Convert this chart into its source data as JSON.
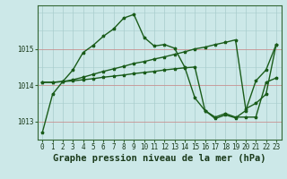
{
  "title": "Graphe pression niveau de la mer (hPa)",
  "bg_color": "#cce8e8",
  "plot_bg_color": "#cce8e8",
  "line_color": "#1a5c1a",
  "grid_color_v": "#a8cccc",
  "grid_color_h_red": "#c89090",
  "xlim": [
    -0.5,
    23.5
  ],
  "ylim": [
    1012.5,
    1016.2
  ],
  "yticks": [
    1013,
    1014,
    1015
  ],
  "xticks": [
    0,
    1,
    2,
    3,
    4,
    5,
    6,
    7,
    8,
    9,
    10,
    11,
    12,
    13,
    14,
    15,
    16,
    17,
    18,
    19,
    20,
    21,
    22,
    23
  ],
  "series1": [
    1012.7,
    1013.75,
    1014.1,
    1014.42,
    1014.9,
    1015.1,
    1015.35,
    1015.55,
    1015.85,
    1015.95,
    1015.32,
    1015.08,
    1015.12,
    1015.02,
    1014.5,
    1013.65,
    1013.3,
    1013.08,
    1013.18,
    1013.1,
    1013.3,
    1014.12,
    1014.42,
    1015.12
  ],
  "series2": [
    1014.08,
    1014.08,
    1014.1,
    1014.15,
    1014.22,
    1014.3,
    1014.38,
    1014.45,
    1014.52,
    1014.6,
    1014.65,
    1014.72,
    1014.78,
    1014.85,
    1014.92,
    1015.0,
    1015.05,
    1015.12,
    1015.18,
    1015.25,
    1013.35,
    1013.5,
    1013.75,
    1015.12
  ],
  "series3": [
    1014.08,
    1014.08,
    1014.1,
    1014.12,
    1014.15,
    1014.18,
    1014.22,
    1014.25,
    1014.28,
    1014.32,
    1014.35,
    1014.38,
    1014.42,
    1014.45,
    1014.48,
    1014.5,
    1013.3,
    1013.12,
    1013.22,
    1013.12,
    1013.12,
    1013.12,
    1014.08,
    1014.2
  ],
  "marker_size": 2.5,
  "line_width": 1.0,
  "title_fontsize": 7.5,
  "tick_fontsize": 5.5
}
